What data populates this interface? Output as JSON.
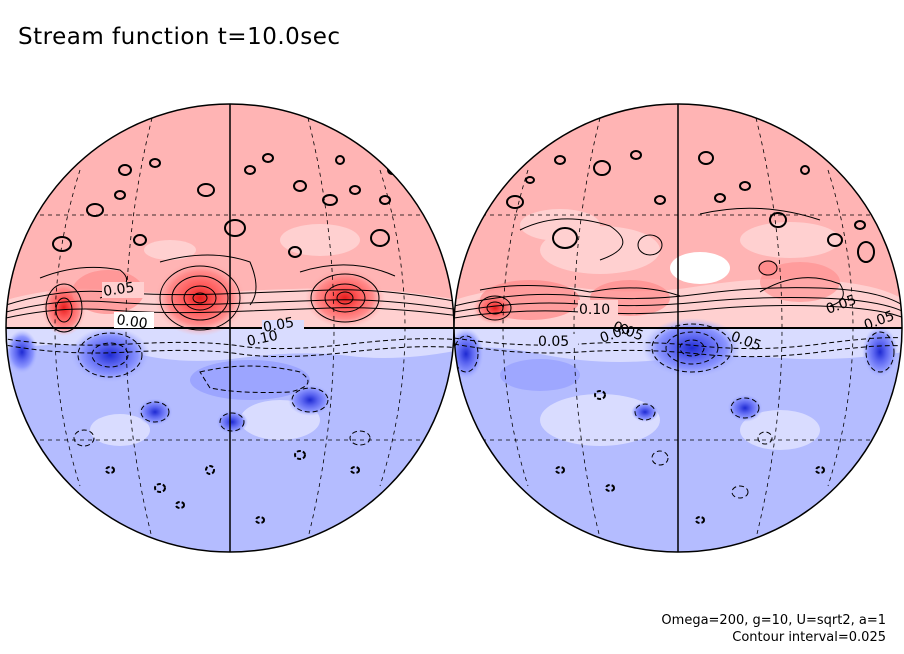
{
  "figure": {
    "title": "Stream function t=10.0sec",
    "params_text": "Omega=200, g=10, U=sqrt2, a=1",
    "interval_text": "Contour interval=0.025"
  },
  "colors": {
    "pos_light": "#ffd0d0",
    "pos_base": "#ffb4b4",
    "pos_mid": "#ff8c8c",
    "pos_strong": "#ff5a5a",
    "pos_peak": "#e61e1e",
    "neg_light": "#d9dcff",
    "neg_base": "#b4bcff",
    "neg_mid": "#8c96ff",
    "neg_strong": "#5a64f0",
    "neg_peak": "#1e2ad2"
  },
  "contour_labels": {
    "left": [
      "0.05",
      "0.00",
      "0.05",
      "0.10"
    ],
    "right": [
      "0.10",
      "0.05",
      "0.00",
      "0.05",
      "0.05",
      "0.05",
      "0.05",
      "0.0"
    ]
  }
}
